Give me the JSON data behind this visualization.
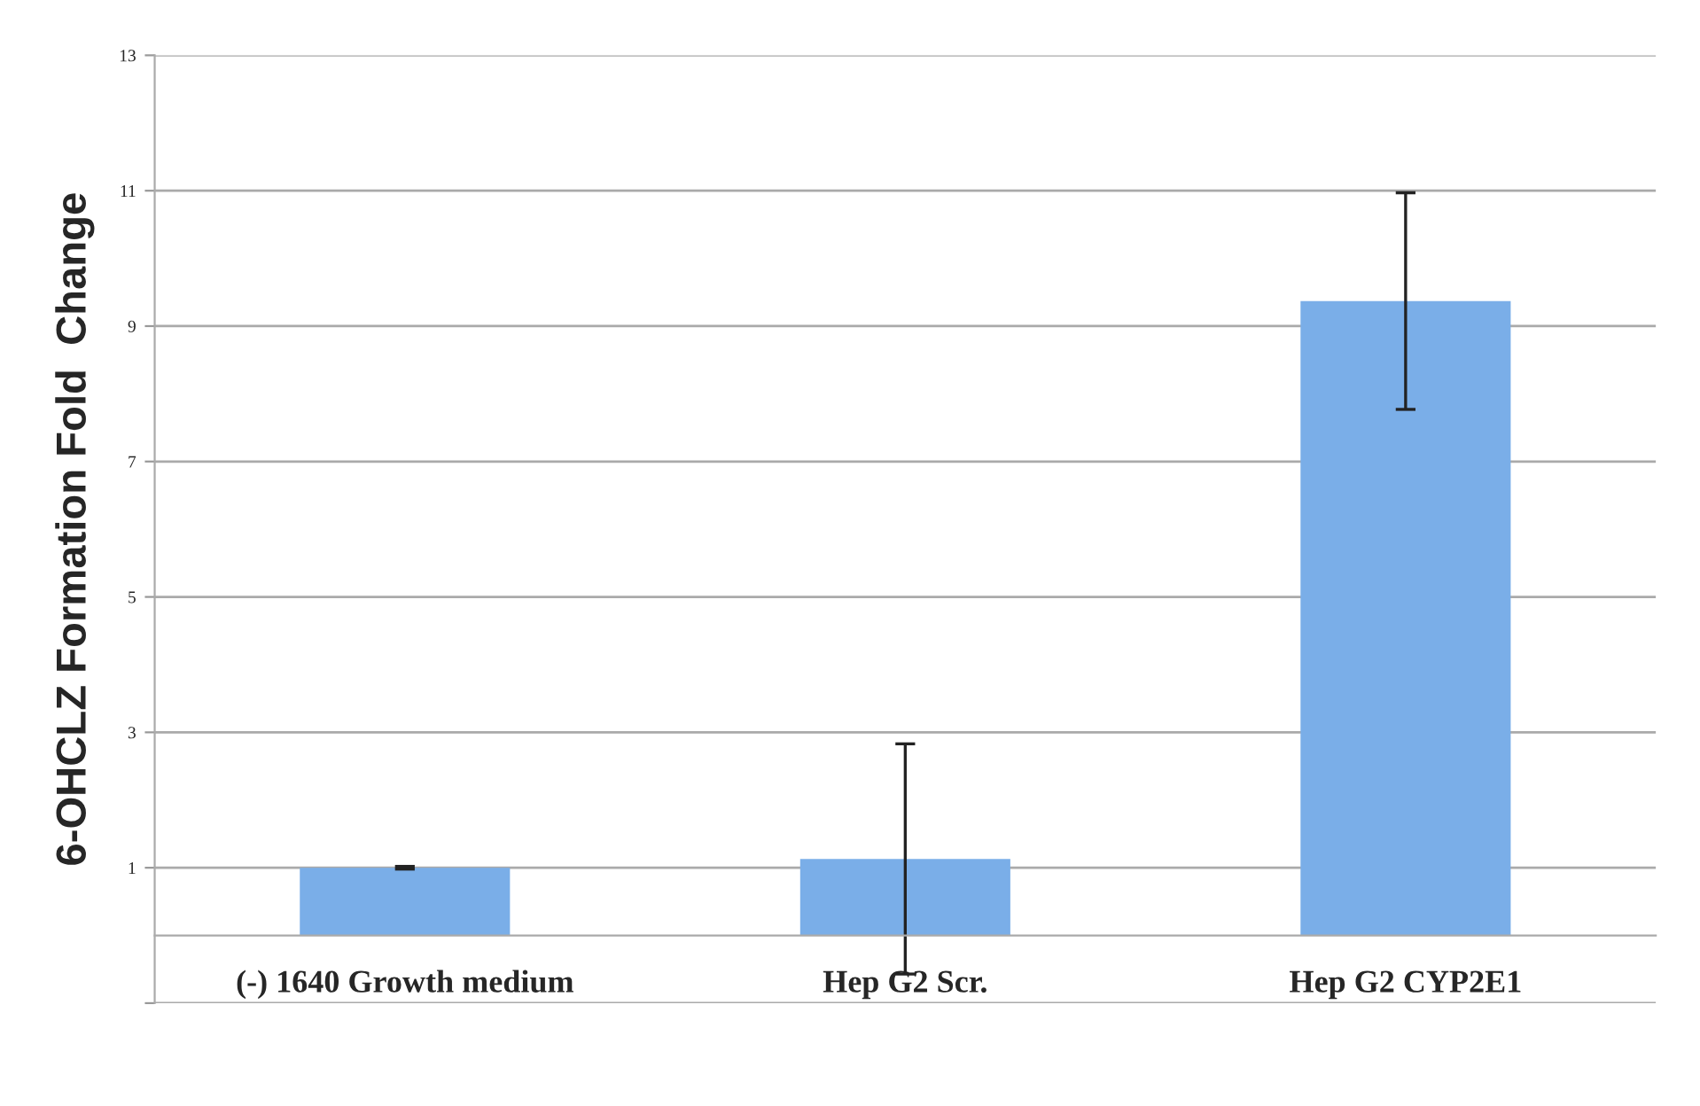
{
  "chart_data": {
    "type": "bar",
    "ylabel": "6-OHCLZ Formation Fold  Change",
    "categories": [
      "(-) 1640 Growth medium",
      "Hep G2 Scr.",
      "Hep G2 CYP2E1"
    ],
    "values": [
      1.0,
      1.13,
      9.37
    ],
    "errors": [
      0.02,
      1.7,
      1.6
    ],
    "color": "#7aaee8",
    "ylim": [
      -1,
      13
    ],
    "yticks": [
      {
        "value": -1,
        "label": null
      },
      1,
      3,
      5,
      7,
      9,
      11,
      13
    ],
    "grid": "y"
  }
}
